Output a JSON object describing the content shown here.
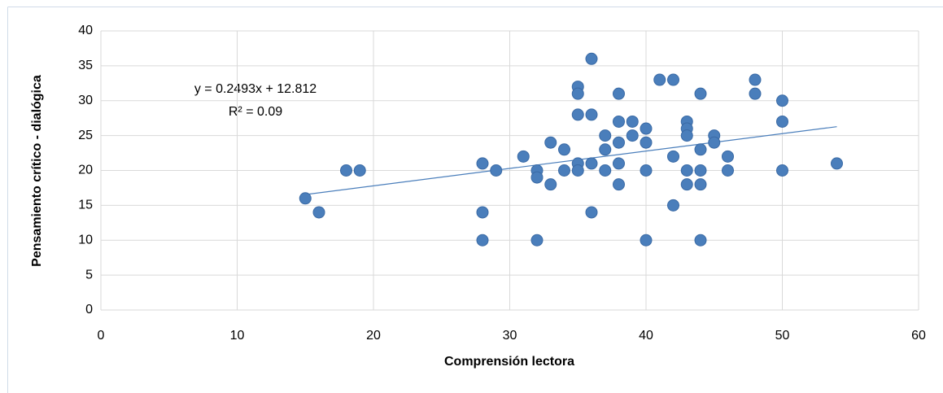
{
  "chart_data": {
    "type": "scatter",
    "x_label": "Comprensión lectora",
    "y_label": "Pensamiento crítico - dialógica",
    "equation": "y = 0.2493x + 12.812",
    "r_squared": "R² = 0.09",
    "trendline": {
      "slope": 0.2493,
      "intercept": 12.812,
      "color": "#4a7ebb"
    },
    "color": "#4a7ebb",
    "x": [
      15,
      16,
      18,
      19,
      28,
      28,
      28,
      29,
      31,
      32,
      32,
      32,
      33,
      33,
      34,
      34,
      35,
      35,
      35,
      35,
      35,
      36,
      36,
      36,
      36,
      37,
      37,
      37,
      38,
      38,
      38,
      38,
      38,
      39,
      39,
      40,
      40,
      40,
      40,
      41,
      42,
      42,
      42,
      43,
      43,
      43,
      43,
      43,
      44,
      44,
      44,
      44,
      44,
      45,
      45,
      46,
      46,
      48,
      48,
      50,
      50,
      50,
      54
    ],
    "values": [
      16,
      14,
      20,
      20,
      21,
      14,
      10,
      20,
      22,
      20,
      19,
      10,
      24,
      18,
      23,
      20,
      32,
      31,
      28,
      21,
      20,
      36,
      28,
      21,
      14,
      25,
      23,
      20,
      31,
      27,
      24,
      21,
      18,
      27,
      25,
      26,
      24,
      20,
      10,
      33,
      33,
      22,
      15,
      27,
      26,
      25,
      20,
      18,
      31,
      23,
      20,
      18,
      10,
      25,
      24,
      22,
      20,
      33,
      31,
      30,
      27,
      20,
      21
    ],
    "xlim": [
      0,
      60
    ],
    "xticks": [
      0,
      10,
      20,
      30,
      40,
      50,
      60
    ],
    "ylim": [
      0,
      40
    ],
    "yticks": [
      0,
      5,
      10,
      15,
      20,
      25,
      30,
      35,
      40
    ],
    "grid": true
  }
}
